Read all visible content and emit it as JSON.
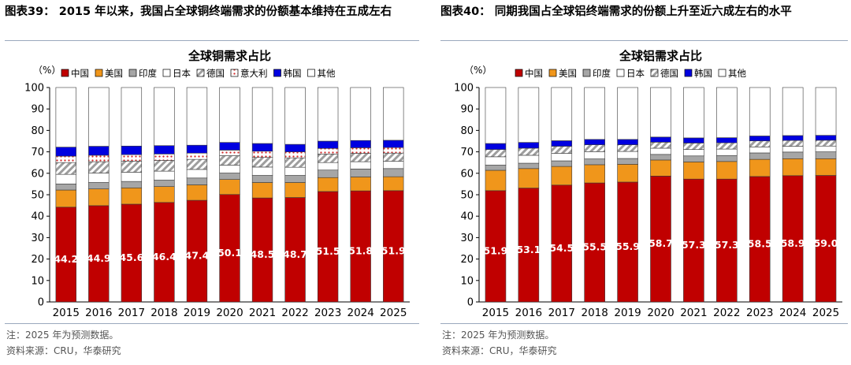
{
  "figures": [
    {
      "title": "图表39：  2015 年以来，我国占全球铜终端需求的份额基本维持在五成左右",
      "note": "注：2025 年为预测数据。",
      "source": "资料来源：CRU，华泰研究"
    },
    {
      "title": "图表40：  同期我国占全球铝终端需求的份额上升至近六成左右的水平",
      "note": "注：2025 年为预测数据。",
      "source": "资料来源：CRU，华泰研究"
    }
  ],
  "chart_data": [
    {
      "type": "bar",
      "stacked": true,
      "title": "全球铜需求占比",
      "unit_label": "（%）",
      "xlabel": "",
      "ylabel": "",
      "ylim": [
        0,
        100
      ],
      "yticks": [
        0,
        10,
        20,
        30,
        40,
        50,
        60,
        70,
        80,
        90,
        100
      ],
      "legend_position": "top",
      "categories": [
        "2015",
        "2016",
        "2017",
        "2018",
        "2019",
        "2020",
        "2021",
        "2022",
        "2023",
        "2024",
        "2025"
      ],
      "series": [
        {
          "name": "中国",
          "color": "#c00000",
          "pattern": "solid",
          "show_labels": true,
          "values": [
            44.2,
            44.9,
            45.6,
            46.4,
            47.4,
            50.1,
            48.5,
            48.7,
            51.5,
            51.8,
            51.9
          ]
        },
        {
          "name": "美国",
          "color": "#f0961b",
          "pattern": "solid",
          "values": [
            8.0,
            7.8,
            7.6,
            7.4,
            7.2,
            7.0,
            7.2,
            7.0,
            6.5,
            6.5,
            6.5
          ]
        },
        {
          "name": "印度",
          "color": "#a6a6a6",
          "pattern": "solid",
          "values": [
            2.8,
            3.0,
            3.0,
            3.0,
            3.2,
            3.0,
            3.3,
            3.3,
            3.5,
            3.7,
            3.8
          ]
        },
        {
          "name": "日本",
          "color": "#ffffff",
          "pattern": "solid",
          "values": [
            4.5,
            4.4,
            4.3,
            4.2,
            4.0,
            3.7,
            3.9,
            3.8,
            3.5,
            3.4,
            3.4
          ]
        },
        {
          "name": "德国",
          "color": "#ffffff",
          "pattern": "hatch-gray",
          "values": [
            5.5,
            5.3,
            5.2,
            5.0,
            4.7,
            4.4,
            4.5,
            4.4,
            4.0,
            3.9,
            3.8
          ]
        },
        {
          "name": "意大利",
          "color": "#ffffff",
          "pattern": "dots-red",
          "values": [
            3.0,
            3.0,
            3.0,
            3.0,
            2.9,
            2.6,
            2.9,
            2.8,
            2.6,
            2.6,
            2.6
          ]
        },
        {
          "name": "韩国",
          "color": "#0000e0",
          "pattern": "solid",
          "values": [
            4.2,
            4.2,
            4.0,
            3.9,
            3.7,
            3.6,
            3.6,
            3.5,
            3.4,
            3.4,
            3.4
          ]
        },
        {
          "name": "其他",
          "color": "#ffffff",
          "pattern": "solid",
          "values": [
            27.8,
            27.4,
            27.3,
            27.1,
            26.9,
            25.6,
            26.1,
            26.5,
            25.0,
            24.7,
            24.6
          ]
        }
      ]
    },
    {
      "type": "bar",
      "stacked": true,
      "title": "全球铝需求占比",
      "unit_label": "（%）",
      "xlabel": "",
      "ylabel": "",
      "ylim": [
        0,
        100
      ],
      "yticks": [
        0,
        10,
        20,
        30,
        40,
        50,
        60,
        70,
        80,
        90,
        100
      ],
      "legend_position": "top",
      "categories": [
        "2015",
        "2016",
        "2017",
        "2018",
        "2019",
        "2020",
        "2021",
        "2022",
        "2023",
        "2024",
        "2025"
      ],
      "series": [
        {
          "name": "中国",
          "color": "#c00000",
          "pattern": "solid",
          "show_labels": true,
          "values": [
            51.9,
            53.1,
            54.5,
            55.5,
            55.9,
            58.7,
            57.3,
            57.3,
            58.5,
            58.9,
            59.0
          ]
        },
        {
          "name": "美国",
          "color": "#f0961b",
          "pattern": "solid",
          "values": [
            9.5,
            9.1,
            8.7,
            8.5,
            8.3,
            7.5,
            8.0,
            8.2,
            8.0,
            7.9,
            7.8
          ]
        },
        {
          "name": "印度",
          "color": "#a6a6a6",
          "pattern": "solid",
          "values": [
            2.4,
            2.5,
            2.6,
            2.7,
            2.7,
            2.6,
            2.8,
            2.8,
            3.0,
            3.1,
            3.2
          ]
        },
        {
          "name": "日本",
          "color": "#ffffff",
          "pattern": "solid",
          "values": [
            3.9,
            3.7,
            3.5,
            3.4,
            3.3,
            2.9,
            3.0,
            3.0,
            2.8,
            2.7,
            2.7
          ]
        },
        {
          "name": "德国",
          "color": "#ffffff",
          "pattern": "hatch-gray",
          "values": [
            3.4,
            3.3,
            3.3,
            3.2,
            3.1,
            2.8,
            3.0,
            2.9,
            2.8,
            2.7,
            2.7
          ]
        },
        {
          "name": "韩国",
          "color": "#0000e0",
          "pattern": "solid",
          "values": [
            2.8,
            2.7,
            2.6,
            2.5,
            2.5,
            2.4,
            2.4,
            2.4,
            2.3,
            2.3,
            2.3
          ]
        },
        {
          "name": "其他",
          "color": "#ffffff",
          "pattern": "solid",
          "values": [
            26.1,
            25.6,
            24.8,
            24.2,
            24.2,
            23.1,
            23.5,
            23.4,
            22.6,
            22.4,
            22.3
          ]
        }
      ]
    }
  ]
}
